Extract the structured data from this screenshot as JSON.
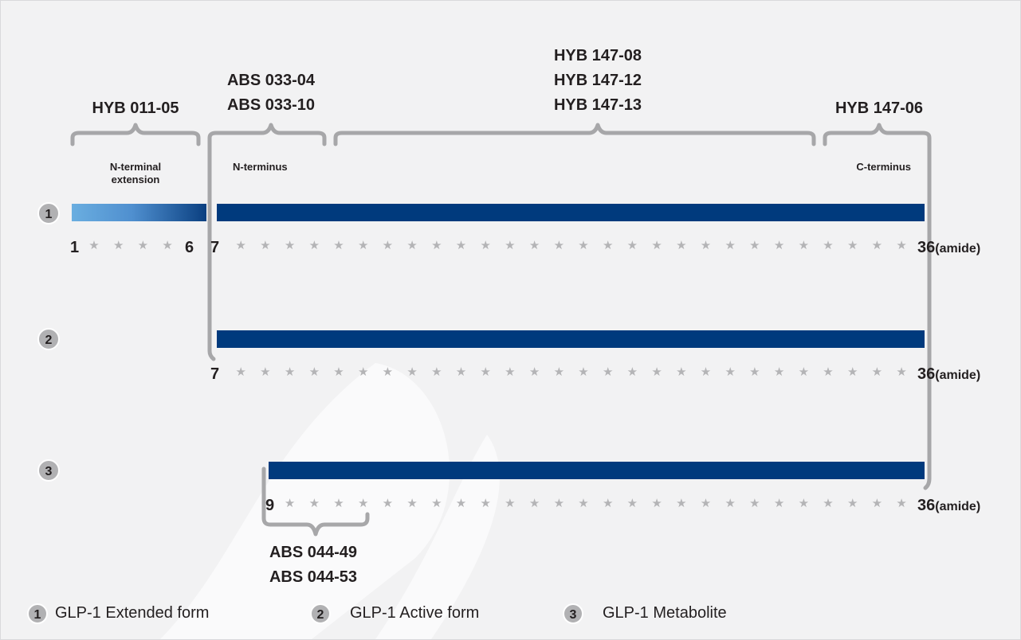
{
  "antibodies": {
    "hyb_011": [
      "HYB 011-05"
    ],
    "abs_033": [
      "ABS 033-04",
      "ABS 033-10"
    ],
    "hyb_147_mid": [
      "HYB 147-08",
      "HYB 147-12",
      "HYB 147-13"
    ],
    "hyb_147_06": [
      "HYB 147-06"
    ],
    "abs_044": [
      "ABS 044-49",
      "ABS 044-53"
    ]
  },
  "regions": {
    "n_terminal_extension": [
      "N-terminal",
      "extension"
    ],
    "n_terminus": "N-terminus",
    "c_terminus": "C-terminus"
  },
  "forms": [
    {
      "badge": "1",
      "start": 1,
      "end": 36,
      "start_label": "1",
      "end_label": "36",
      "suffix": "(amide)",
      "extension_end_label": "6",
      "core_start_label": "7"
    },
    {
      "badge": "2",
      "start": 7,
      "end": 36,
      "start_label": "7",
      "end_label": "36",
      "suffix": "(amide)"
    },
    {
      "badge": "3",
      "start": 9,
      "end": 36,
      "start_label": "9",
      "end_label": "36",
      "suffix": "(amide)"
    }
  ],
  "legend": [
    {
      "badge": "1",
      "label": "GLP-1 Extended form"
    },
    {
      "badge": "2",
      "label": "GLP-1 Active form"
    },
    {
      "badge": "3",
      "label": "GLP-1 Metabolite"
    }
  ],
  "colors": {
    "bar": "#003a7d",
    "extension_start": "#6aaee0",
    "extension_end": "#0a3f80",
    "bracket": "#a7a7a9",
    "star": "#b4b4b6",
    "badge": "#b1b1b3",
    "background": "#f2f2f3"
  }
}
